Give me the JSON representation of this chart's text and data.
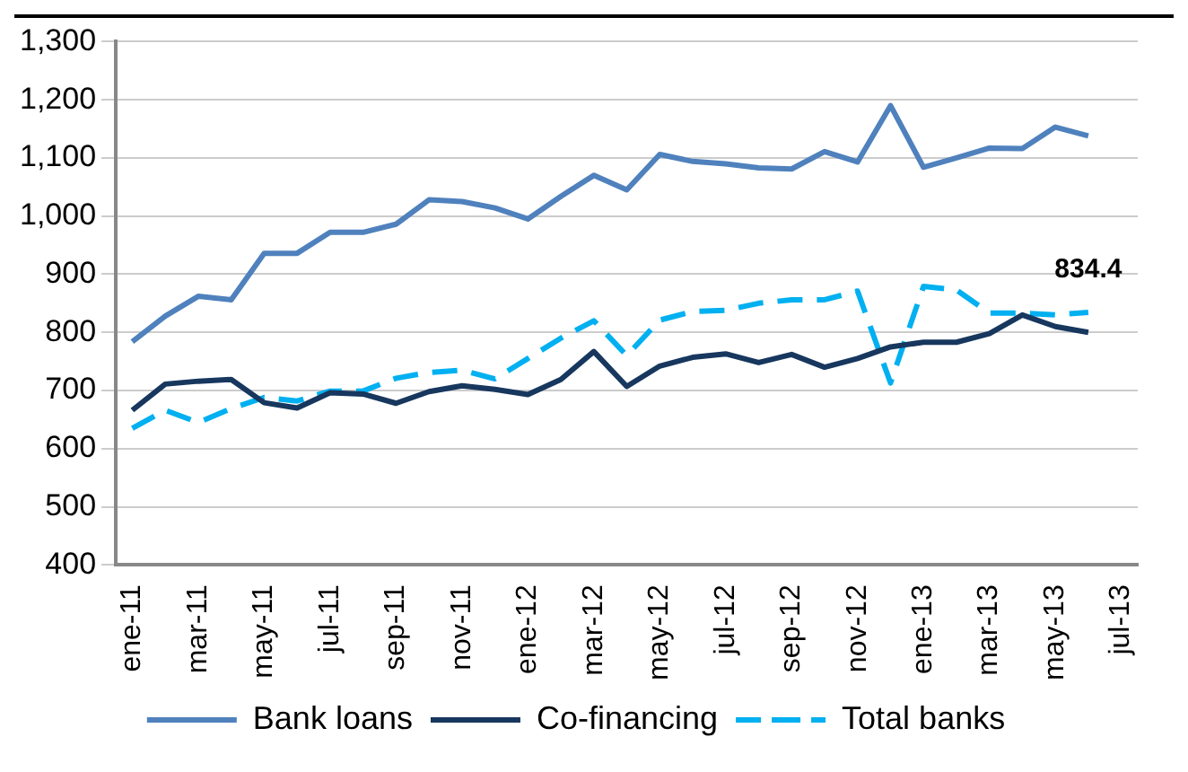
{
  "chart_data": {
    "type": "line",
    "categories": [
      "ene-11",
      null,
      "mar-11",
      null,
      "may-11",
      null,
      "jul-11",
      null,
      "sep-11",
      null,
      "nov-11",
      null,
      "ene-12",
      null,
      "mar-12",
      null,
      "may-12",
      null,
      "jul-12",
      null,
      "sep-12",
      null,
      "nov-12",
      null,
      "ene-13",
      null,
      "mar-13",
      null,
      "may-13",
      null,
      "jul-13"
    ],
    "series": [
      {
        "name": "Bank loans",
        "color": "#4f81bd",
        "line_style": "solid",
        "values": [
          784,
          828,
          862,
          856,
          936,
          936,
          972,
          972,
          986,
          1028,
          1025,
          1014,
          995,
          1034,
          1070,
          1045,
          1106,
          1094,
          1090,
          1083,
          1081,
          1111,
          1093,
          1190,
          1084,
          1100,
          1117,
          1116,
          1153,
          1138,
          null
        ]
      },
      {
        "name": "Co-financing",
        "color": "#17375e",
        "line_style": "solid",
        "values": [
          666,
          711,
          716,
          719,
          679,
          670,
          696,
          694,
          678,
          698,
          708,
          702,
          693,
          719,
          767,
          707,
          742,
          757,
          763,
          748,
          762,
          740,
          755,
          775,
          783,
          783,
          798,
          830,
          810,
          800,
          null
        ]
      },
      {
        "name": "Total banks",
        "color": "#00b0f0",
        "line_style": "dashed",
        "values": [
          635,
          666,
          645,
          669,
          688,
          682,
          699,
          699,
          721,
          731,
          735,
          720,
          755,
          790,
          820,
          760,
          821,
          836,
          838,
          850,
          856,
          856,
          871,
          713,
          879,
          873,
          833,
          833,
          830,
          834.4,
          null
        ],
        "value_labels": [
          null,
          null,
          null,
          null,
          null,
          null,
          null,
          null,
          null,
          null,
          null,
          null,
          null,
          null,
          null,
          null,
          null,
          null,
          null,
          null,
          null,
          null,
          null,
          null,
          null,
          null,
          null,
          null,
          null,
          "834.4",
          null
        ]
      }
    ],
    "ylim": [
      400,
      1300
    ],
    "yticks": [
      400,
      500,
      600,
      700,
      800,
      900,
      {
        "value": 1000,
        "label": "1,000"
      },
      {
        "value": 1100,
        "label": "1,100"
      },
      {
        "value": 1200,
        "label": "1,200"
      },
      {
        "value": 1300,
        "label": "1,300"
      }
    ],
    "grid": "y",
    "legend": "bottom",
    "marker": "none"
  }
}
